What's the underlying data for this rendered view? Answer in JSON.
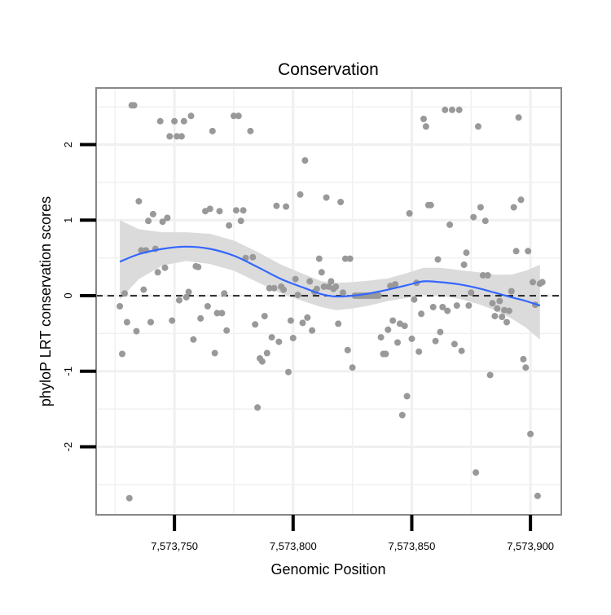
{
  "chart_data": {
    "type": "scatter",
    "title": "Conservation",
    "xlabel": "Genomic Position",
    "ylabel": "phyloP LRT conservation scores",
    "xlim": [
      7573717,
      7573913
    ],
    "ylim": [
      -2.9,
      2.75
    ],
    "x_ticks": [
      {
        "value": 7573750,
        "label": "7,573,750"
      },
      {
        "value": 7573800,
        "label": "7,573,800"
      },
      {
        "value": 7573850,
        "label": "7,573,850"
      },
      {
        "value": 7573900,
        "label": "7,573,900"
      }
    ],
    "y_ticks": [
      {
        "value": -2,
        "label": "-2"
      },
      {
        "value": -1,
        "label": "-1"
      },
      {
        "value": 0,
        "label": "0"
      },
      {
        "value": 1,
        "label": "1"
      },
      {
        "value": 2,
        "label": "2"
      }
    ],
    "grid": true,
    "reference_line": {
      "y": 0,
      "style": "dashed"
    },
    "colors": {
      "points": "#999999",
      "smooth_line": "#3366ff",
      "confidence_band": "#d9d9d9",
      "panel_border": "#888888",
      "grid": "#f0f0f0"
    },
    "points": [
      {
        "x": 7573727,
        "y": -0.14
      },
      {
        "x": 7573728,
        "y": -0.77
      },
      {
        "x": 7573729,
        "y": 0.03
      },
      {
        "x": 7573730,
        "y": -0.35
      },
      {
        "x": 7573731,
        "y": -2.68
      },
      {
        "x": 7573732,
        "y": 2.52
      },
      {
        "x": 7573733,
        "y": 2.52
      },
      {
        "x": 7573734,
        "y": -0.47
      },
      {
        "x": 7573735,
        "y": 1.25
      },
      {
        "x": 7573736,
        "y": 0.6
      },
      {
        "x": 7573737,
        "y": 0.08
      },
      {
        "x": 7573738,
        "y": 0.6
      },
      {
        "x": 7573739,
        "y": 0.99
      },
      {
        "x": 7573740,
        "y": -0.35
      },
      {
        "x": 7573741,
        "y": 1.08
      },
      {
        "x": 7573742,
        "y": 0.62
      },
      {
        "x": 7573743,
        "y": 0.31
      },
      {
        "x": 7573744,
        "y": 2.31
      },
      {
        "x": 7573745,
        "y": 0.98
      },
      {
        "x": 7573746,
        "y": 0.37
      },
      {
        "x": 7573747,
        "y": 1.03
      },
      {
        "x": 7573748,
        "y": 2.11
      },
      {
        "x": 7573749,
        "y": -0.33
      },
      {
        "x": 7573750,
        "y": 2.31
      },
      {
        "x": 7573751,
        "y": 2.11
      },
      {
        "x": 7573752,
        "y": -0.06
      },
      {
        "x": 7573753,
        "y": 2.11
      },
      {
        "x": 7573754,
        "y": 2.31
      },
      {
        "x": 7573755,
        "y": -0.02
      },
      {
        "x": 7573756,
        "y": 0.05
      },
      {
        "x": 7573757,
        "y": 2.38
      },
      {
        "x": 7573758,
        "y": -0.58
      },
      {
        "x": 7573759,
        "y": 0.39
      },
      {
        "x": 7573760,
        "y": 0.38
      },
      {
        "x": 7573761,
        "y": -0.3
      },
      {
        "x": 7573763,
        "y": 1.12
      },
      {
        "x": 7573764,
        "y": -0.14
      },
      {
        "x": 7573765,
        "y": 1.15
      },
      {
        "x": 7573766,
        "y": 2.18
      },
      {
        "x": 7573767,
        "y": -0.76
      },
      {
        "x": 7573768,
        "y": -0.23
      },
      {
        "x": 7573769,
        "y": 1.12
      },
      {
        "x": 7573770,
        "y": -0.23
      },
      {
        "x": 7573771,
        "y": 0.03
      },
      {
        "x": 7573772,
        "y": -0.46
      },
      {
        "x": 7573773,
        "y": 0.93
      },
      {
        "x": 7573775,
        "y": 2.38
      },
      {
        "x": 7573776,
        "y": 1.13
      },
      {
        "x": 7573777,
        "y": 2.38
      },
      {
        "x": 7573778,
        "y": 0.99
      },
      {
        "x": 7573779,
        "y": 1.13
      },
      {
        "x": 7573780,
        "y": 0.5
      },
      {
        "x": 7573782,
        "y": 2.18
      },
      {
        "x": 7573783,
        "y": 0.51
      },
      {
        "x": 7573784,
        "y": -0.38
      },
      {
        "x": 7573785,
        "y": -1.48
      },
      {
        "x": 7573786,
        "y": -0.83
      },
      {
        "x": 7573787,
        "y": -0.87
      },
      {
        "x": 7573788,
        "y": -0.27
      },
      {
        "x": 7573789,
        "y": -0.76
      },
      {
        "x": 7573790,
        "y": 0.1
      },
      {
        "x": 7573791,
        "y": -0.55
      },
      {
        "x": 7573792,
        "y": 0.1
      },
      {
        "x": 7573793,
        "y": 1.19
      },
      {
        "x": 7573794,
        "y": -0.61
      },
      {
        "x": 7573795,
        "y": 0.12
      },
      {
        "x": 7573796,
        "y": 0.08
      },
      {
        "x": 7573797,
        "y": 1.18
      },
      {
        "x": 7573798,
        "y": -1.01
      },
      {
        "x": 7573799,
        "y": -0.33
      },
      {
        "x": 7573800,
        "y": -0.56
      },
      {
        "x": 7573801,
        "y": 0.22
      },
      {
        "x": 7573802,
        "y": 0.01
      },
      {
        "x": 7573803,
        "y": 1.34
      },
      {
        "x": 7573804,
        "y": -0.36
      },
      {
        "x": 7573805,
        "y": 1.79
      },
      {
        "x": 7573806,
        "y": -0.29
      },
      {
        "x": 7573807,
        "y": 0.19
      },
      {
        "x": 7573808,
        "y": -0.46
      },
      {
        "x": 7573809,
        "y": 0.05
      },
      {
        "x": 7573810,
        "y": 0.09
      },
      {
        "x": 7573811,
        "y": 0.49
      },
      {
        "x": 7573812,
        "y": 0.31
      },
      {
        "x": 7573813,
        "y": 0.12
      },
      {
        "x": 7573814,
        "y": 1.3
      },
      {
        "x": 7573815,
        "y": 0.12
      },
      {
        "x": 7573816,
        "y": 0.19
      },
      {
        "x": 7573817,
        "y": 0.09
      },
      {
        "x": 7573818,
        "y": 0.12
      },
      {
        "x": 7573819,
        "y": -0.37
      },
      {
        "x": 7573820,
        "y": 1.24
      },
      {
        "x": 7573821,
        "y": 0.04
      },
      {
        "x": 7573822,
        "y": 0.49
      },
      {
        "x": 7573823,
        "y": -0.72
      },
      {
        "x": 7573824,
        "y": 0.49
      },
      {
        "x": 7573825,
        "y": -0.95
      },
      {
        "x": 7573826,
        "y": 0.0
      },
      {
        "x": 7573827,
        "y": 0.0
      },
      {
        "x": 7573828,
        "y": 0.0
      },
      {
        "x": 7573829,
        "y": 0.0
      },
      {
        "x": 7573830,
        "y": 0.0
      },
      {
        "x": 7573831,
        "y": 0.0
      },
      {
        "x": 7573832,
        "y": 0.0
      },
      {
        "x": 7573833,
        "y": 0.0
      },
      {
        "x": 7573834,
        "y": 0.0
      },
      {
        "x": 7573835,
        "y": 0.0
      },
      {
        "x": 7573836,
        "y": 0.0
      },
      {
        "x": 7573837,
        "y": -0.55
      },
      {
        "x": 7573838,
        "y": -0.77
      },
      {
        "x": 7573839,
        "y": -0.77
      },
      {
        "x": 7573840,
        "y": -0.45
      },
      {
        "x": 7573841,
        "y": 0.13
      },
      {
        "x": 7573842,
        "y": -0.33
      },
      {
        "x": 7573843,
        "y": 0.15
      },
      {
        "x": 7573844,
        "y": -0.62
      },
      {
        "x": 7573845,
        "y": -0.37
      },
      {
        "x": 7573846,
        "y": -1.58
      },
      {
        "x": 7573847,
        "y": -0.4
      },
      {
        "x": 7573848,
        "y": -1.33
      },
      {
        "x": 7573849,
        "y": 1.09
      },
      {
        "x": 7573850,
        "y": -0.57
      },
      {
        "x": 7573851,
        "y": -0.05
      },
      {
        "x": 7573852,
        "y": 0.17
      },
      {
        "x": 7573853,
        "y": -0.74
      },
      {
        "x": 7573854,
        "y": -0.24
      },
      {
        "x": 7573855,
        "y": 2.34
      },
      {
        "x": 7573856,
        "y": 2.24
      },
      {
        "x": 7573857,
        "y": 1.2
      },
      {
        "x": 7573858,
        "y": 1.2
      },
      {
        "x": 7573859,
        "y": -0.15
      },
      {
        "x": 7573860,
        "y": -0.6
      },
      {
        "x": 7573861,
        "y": 0.48
      },
      {
        "x": 7573862,
        "y": -0.48
      },
      {
        "x": 7573863,
        "y": -0.15
      },
      {
        "x": 7573864,
        "y": 2.46
      },
      {
        "x": 7573865,
        "y": -0.2
      },
      {
        "x": 7573866,
        "y": 0.94
      },
      {
        "x": 7573867,
        "y": 2.46
      },
      {
        "x": 7573868,
        "y": -0.64
      },
      {
        "x": 7573869,
        "y": -0.13
      },
      {
        "x": 7573870,
        "y": 2.46
      },
      {
        "x": 7573871,
        "y": -0.73
      },
      {
        "x": 7573872,
        "y": 0.41
      },
      {
        "x": 7573873,
        "y": 0.57
      },
      {
        "x": 7573874,
        "y": -0.13
      },
      {
        "x": 7573875,
        "y": 0.04
      },
      {
        "x": 7573876,
        "y": 1.04
      },
      {
        "x": 7573877,
        "y": -2.34
      },
      {
        "x": 7573878,
        "y": 2.24
      },
      {
        "x": 7573879,
        "y": 1.17
      },
      {
        "x": 7573880,
        "y": 0.27
      },
      {
        "x": 7573881,
        "y": 0.99
      },
      {
        "x": 7573882,
        "y": 0.27
      },
      {
        "x": 7573883,
        "y": -1.05
      },
      {
        "x": 7573884,
        "y": -0.1
      },
      {
        "x": 7573885,
        "y": -0.27
      },
      {
        "x": 7573886,
        "y": -0.17
      },
      {
        "x": 7573887,
        "y": -0.07
      },
      {
        "x": 7573888,
        "y": -0.28
      },
      {
        "x": 7573889,
        "y": -0.19
      },
      {
        "x": 7573890,
        "y": -0.35
      },
      {
        "x": 7573891,
        "y": -0.2
      },
      {
        "x": 7573892,
        "y": 0.06
      },
      {
        "x": 7573893,
        "y": 1.17
      },
      {
        "x": 7573894,
        "y": 0.59
      },
      {
        "x": 7573895,
        "y": 2.36
      },
      {
        "x": 7573896,
        "y": 1.27
      },
      {
        "x": 7573897,
        "y": -0.84
      },
      {
        "x": 7573898,
        "y": -0.95
      },
      {
        "x": 7573899,
        "y": 0.59
      },
      {
        "x": 7573900,
        "y": -1.83
      },
      {
        "x": 7573901,
        "y": 0.18
      },
      {
        "x": 7573902,
        "y": -0.12
      },
      {
        "x": 7573903,
        "y": -2.65
      },
      {
        "x": 7573904,
        "y": 0.16
      },
      {
        "x": 7573905,
        "y": 0.18
      }
    ],
    "smooth_line": {
      "x": [
        7573727,
        7573735,
        7573745,
        7573755,
        7573765,
        7573775,
        7573785,
        7573795,
        7573805,
        7573812,
        7573818,
        7573825,
        7573832,
        7573840,
        7573848,
        7573855,
        7573862,
        7573870,
        7573878,
        7573885,
        7573892,
        7573898,
        7573904
      ],
      "y": [
        0.45,
        0.55,
        0.62,
        0.65,
        0.62,
        0.53,
        0.38,
        0.22,
        0.1,
        0.02,
        -0.01,
        0.0,
        0.03,
        0.08,
        0.14,
        0.19,
        0.18,
        0.15,
        0.1,
        0.04,
        -0.02,
        -0.07,
        -0.13
      ],
      "lower": [
        -0.05,
        0.22,
        0.4,
        0.46,
        0.42,
        0.33,
        0.18,
        0.03,
        -0.08,
        -0.15,
        -0.19,
        -0.17,
        -0.13,
        -0.07,
        -0.03,
        0.01,
        0.0,
        -0.04,
        -0.11,
        -0.19,
        -0.3,
        -0.42,
        -0.58
      ],
      "upper": [
        1.0,
        0.88,
        0.84,
        0.84,
        0.82,
        0.73,
        0.58,
        0.41,
        0.28,
        0.19,
        0.17,
        0.18,
        0.2,
        0.23,
        0.3,
        0.37,
        0.37,
        0.34,
        0.31,
        0.28,
        0.28,
        0.33,
        0.41
      ]
    }
  }
}
